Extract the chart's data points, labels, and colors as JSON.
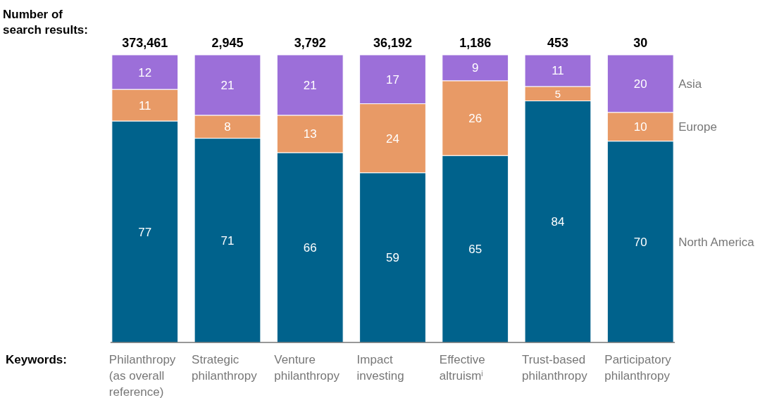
{
  "chart_data": {
    "type": "bar",
    "stacked": true,
    "title": "Number of search results:",
    "xlabel": "Keywords:",
    "categories": [
      "Philanthropy (as overall reference)",
      "Strategic philanthropy",
      "Venture philanthropy",
      "Impact investing",
      "Effective altruism$^{i}$",
      "Trust-based philanthropy",
      "Participatory philanthropy"
    ],
    "series": [
      {
        "name": "North America",
        "color": "#00628c",
        "values": [
          77,
          71,
          66,
          59,
          65,
          84,
          70
        ]
      },
      {
        "name": "Europe",
        "color": "#e89a66",
        "values": [
          11,
          8,
          13,
          24,
          26,
          5,
          10
        ]
      },
      {
        "name": "Asia",
        "color": "#9c6fd9",
        "values": [
          12,
          21,
          21,
          17,
          9,
          11,
          20
        ]
      }
    ],
    "ylim": [
      0,
      100
    ],
    "data_labels": true,
    "legend": "right",
    "annotations": [
      {
        "text": "373,461",
        "x": "Philanthropy (as overall reference)",
        "y": 100
      },
      {
        "text": "2,945",
        "x": "Strategic philanthropy",
        "y": 100
      },
      {
        "text": "3,792",
        "x": "Venture philanthropy",
        "y": 100
      },
      {
        "text": "36,192",
        "x": "Impact investing",
        "y": 100
      },
      {
        "text": "1,186",
        "x": "Effective altruism$^{i}$",
        "y": 100
      },
      {
        "text": "453",
        "x": "Trust-based philanthropy",
        "y": 100
      },
      {
        "text": "30",
        "x": "Participatory philanthropy",
        "y": 100
      }
    ]
  }
}
